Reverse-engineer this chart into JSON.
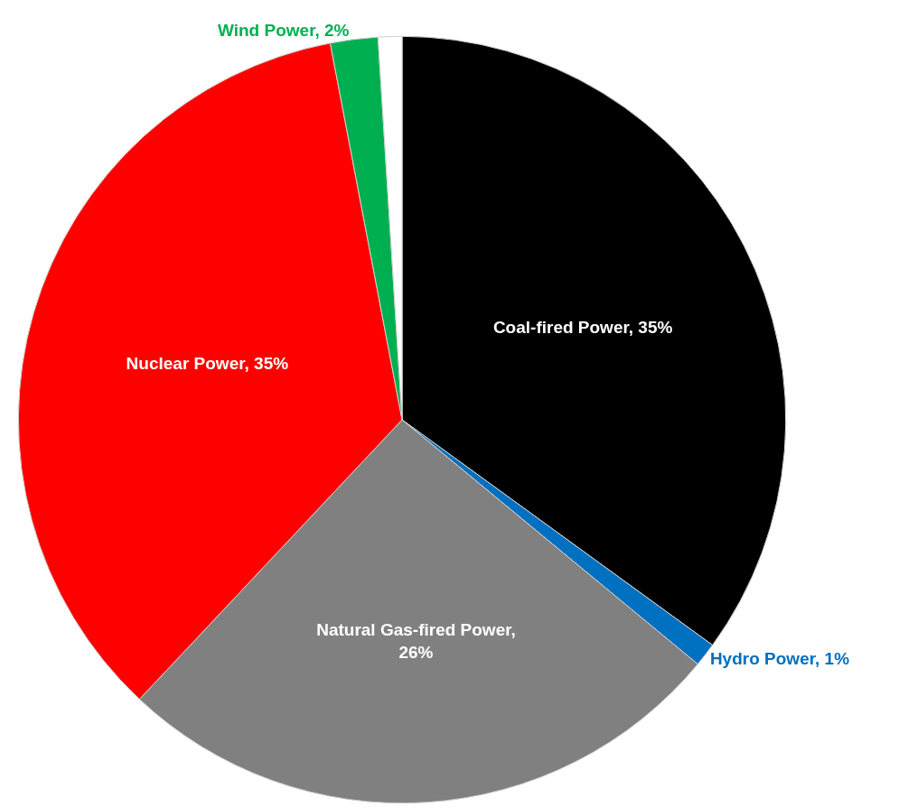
{
  "chart_data": {
    "type": "pie",
    "categories": [
      "Coal-fired Power, 35%",
      "Hydro Power, 1%",
      "Natural Gas-fired Power, 26%",
      "Nuclear Power, 35%",
      "Wind Power, 2%",
      null
    ],
    "values": [
      35,
      1,
      26,
      35,
      2,
      1
    ],
    "colors": [
      "#000000",
      "#0070c0",
      "#808080",
      "#ff0000",
      "#00b050",
      "#ffffff"
    ],
    "legend": false
  }
}
